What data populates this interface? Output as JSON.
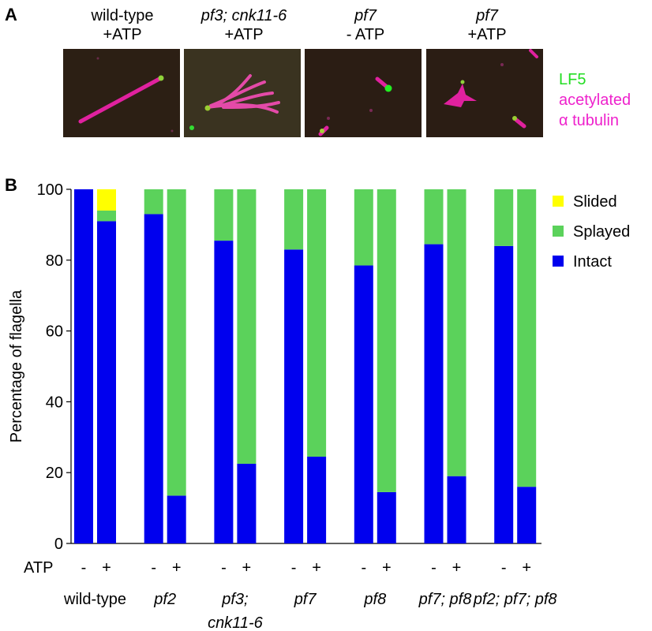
{
  "panel_a": {
    "letter": "A",
    "images": [
      {
        "line1": "wild-type",
        "line2": "+ATP"
      },
      {
        "line1": "pf3; cnk11-6",
        "line2": "+ATP"
      },
      {
        "line1": "pf7",
        "line2": "- ATP"
      },
      {
        "line1": "pf7",
        "line2": "+ATP"
      }
    ],
    "legend": {
      "lf5": "LF5",
      "acetylated": "acetylated",
      "tubulin": "α tubulin"
    },
    "colors": {
      "lf5": "#22dd22",
      "tubulin": "#ee22cc"
    }
  },
  "panel_b": {
    "letter": "B"
  },
  "chart_data": {
    "type": "bar",
    "stacked": true,
    "ylabel": "Percentage of flagella",
    "ylim": [
      0,
      100
    ],
    "yticks": [
      0,
      20,
      40,
      60,
      80,
      100
    ],
    "grid": false,
    "legend_position": "top-right",
    "atp_label": "ATP",
    "groups": [
      {
        "name": "wild-type",
        "name_line2": "",
        "bars": [
          {
            "atp": "-",
            "intact": 100,
            "splayed": 0,
            "slided": 0
          },
          {
            "atp": "+",
            "intact": 91,
            "splayed": 3,
            "slided": 6
          }
        ]
      },
      {
        "name": "pf2",
        "name_line2": "",
        "bars": [
          {
            "atp": "-",
            "intact": 93,
            "splayed": 7,
            "slided": 0
          },
          {
            "atp": "+",
            "intact": 13.5,
            "splayed": 86.5,
            "slided": 0
          }
        ]
      },
      {
        "name": "pf3;",
        "name_line2": "cnk11-6",
        "bars": [
          {
            "atp": "-",
            "intact": 85.5,
            "splayed": 14.5,
            "slided": 0
          },
          {
            "atp": "+",
            "intact": 22.5,
            "splayed": 77.5,
            "slided": 0
          }
        ]
      },
      {
        "name": "pf7",
        "name_line2": "",
        "bars": [
          {
            "atp": "-",
            "intact": 83,
            "splayed": 17,
            "slided": 0
          },
          {
            "atp": "+",
            "intact": 24.5,
            "splayed": 75.5,
            "slided": 0
          }
        ]
      },
      {
        "name": "pf8",
        "name_line2": "",
        "bars": [
          {
            "atp": "-",
            "intact": 78.5,
            "splayed": 21.5,
            "slided": 0
          },
          {
            "atp": "+",
            "intact": 14.5,
            "splayed": 85.5,
            "slided": 0
          }
        ]
      },
      {
        "name": "pf7; pf8",
        "name_line2": "",
        "bars": [
          {
            "atp": "-",
            "intact": 84.5,
            "splayed": 15.5,
            "slided": 0
          },
          {
            "atp": "+",
            "intact": 19,
            "splayed": 81,
            "slided": 0
          }
        ]
      },
      {
        "name": "pf2; pf7; pf8",
        "name_line2": "",
        "bars": [
          {
            "atp": "-",
            "intact": 84,
            "splayed": 16,
            "slided": 0
          },
          {
            "atp": "+",
            "intact": 16,
            "splayed": 84,
            "slided": 0
          }
        ]
      }
    ],
    "series": [
      {
        "name": "Slided",
        "key": "slided",
        "color": "#ffff00"
      },
      {
        "name": "Splayed",
        "key": "splayed",
        "color": "#5bd25b"
      },
      {
        "name": "Intact",
        "key": "intact",
        "color": "#0000ee"
      }
    ]
  }
}
